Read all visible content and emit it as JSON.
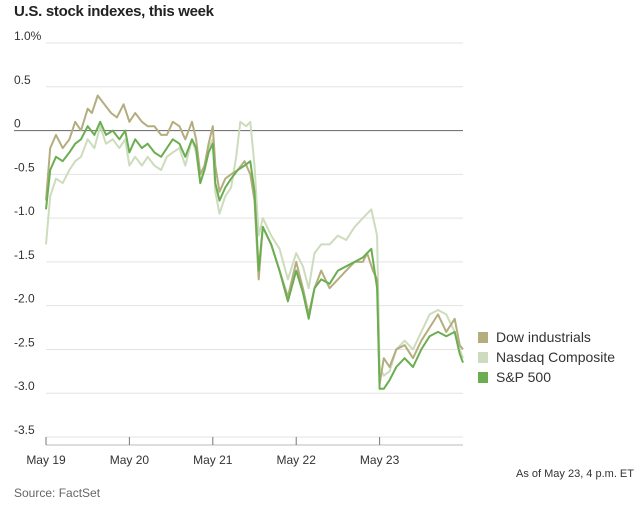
{
  "chart_data": {
    "type": "line",
    "title": "U.S. stock indexes, this week",
    "note": "As of May 23, 4 p.m. ET",
    "source": "Source: FactSet",
    "y_ticks": [
      "1.0%",
      "0.5",
      "0",
      "-0.5",
      "-1.0",
      "-1.5",
      "-2.0",
      "-2.5",
      "-3.0",
      "-3.5"
    ],
    "y_tick_values": [
      1.0,
      0.5,
      0,
      -0.5,
      -1.0,
      -1.5,
      -2.0,
      -2.5,
      -3.0,
      -3.5
    ],
    "x_ticks": [
      "May 19",
      "May 20",
      "May 21",
      "May 22",
      "May 23"
    ],
    "x_tick_values": [
      0,
      1,
      2,
      3,
      4
    ],
    "ylim": [
      -3.5,
      1.0
    ],
    "xlim": [
      0,
      5
    ],
    "grid": true,
    "legend_position": "right",
    "series": [
      {
        "name": "Dow industrials",
        "color": "#b4ad7e",
        "points": [
          [
            0.0,
            -0.8
          ],
          [
            0.05,
            -0.2
          ],
          [
            0.12,
            -0.05
          ],
          [
            0.2,
            -0.2
          ],
          [
            0.28,
            -0.1
          ],
          [
            0.35,
            0.1
          ],
          [
            0.42,
            0.0
          ],
          [
            0.5,
            0.25
          ],
          [
            0.55,
            0.2
          ],
          [
            0.62,
            0.4
          ],
          [
            0.7,
            0.3
          ],
          [
            0.78,
            0.2
          ],
          [
            0.85,
            0.15
          ],
          [
            0.93,
            0.3
          ],
          [
            1.0,
            0.1
          ],
          [
            1.07,
            0.2
          ],
          [
            1.15,
            0.1
          ],
          [
            1.22,
            0.05
          ],
          [
            1.3,
            0.05
          ],
          [
            1.38,
            -0.05
          ],
          [
            1.45,
            -0.05
          ],
          [
            1.52,
            0.1
          ],
          [
            1.6,
            0.05
          ],
          [
            1.67,
            -0.1
          ],
          [
            1.75,
            0.1
          ],
          [
            1.8,
            -0.1
          ],
          [
            1.85,
            -0.5
          ],
          [
            1.9,
            -0.4
          ],
          [
            1.95,
            -0.15
          ],
          [
            2.0,
            0.05
          ],
          [
            2.03,
            -0.4
          ],
          [
            2.08,
            -0.7
          ],
          [
            2.15,
            -0.55
          ],
          [
            2.22,
            -0.5
          ],
          [
            2.3,
            -0.45
          ],
          [
            2.38,
            -0.35
          ],
          [
            2.45,
            -0.5
          ],
          [
            2.5,
            -0.8
          ],
          [
            2.55,
            -1.7
          ],
          [
            2.6,
            -1.1
          ],
          [
            2.7,
            -1.3
          ],
          [
            2.8,
            -1.6
          ],
          [
            2.9,
            -1.9
          ],
          [
            3.0,
            -1.5
          ],
          [
            3.08,
            -1.8
          ],
          [
            3.15,
            -2.1
          ],
          [
            3.22,
            -1.8
          ],
          [
            3.3,
            -1.6
          ],
          [
            3.4,
            -1.8
          ],
          [
            3.5,
            -1.7
          ],
          [
            3.6,
            -1.6
          ],
          [
            3.7,
            -1.5
          ],
          [
            3.8,
            -1.5
          ],
          [
            3.85,
            -1.4
          ],
          [
            3.92,
            -1.6
          ],
          [
            3.97,
            -1.7
          ],
          [
            4.0,
            -2.9
          ],
          [
            4.05,
            -2.6
          ],
          [
            4.12,
            -2.7
          ],
          [
            4.2,
            -2.5
          ],
          [
            4.3,
            -2.45
          ],
          [
            4.4,
            -2.6
          ],
          [
            4.5,
            -2.4
          ],
          [
            4.6,
            -2.25
          ],
          [
            4.7,
            -2.1
          ],
          [
            4.8,
            -2.3
          ],
          [
            4.9,
            -2.15
          ],
          [
            4.96,
            -2.45
          ],
          [
            5.0,
            -2.5
          ]
        ]
      },
      {
        "name": "Nasdaq Composite",
        "color": "#ccdcbc",
        "points": [
          [
            0.0,
            -1.3
          ],
          [
            0.05,
            -0.75
          ],
          [
            0.12,
            -0.55
          ],
          [
            0.2,
            -0.6
          ],
          [
            0.28,
            -0.45
          ],
          [
            0.35,
            -0.35
          ],
          [
            0.42,
            -0.3
          ],
          [
            0.5,
            -0.1
          ],
          [
            0.58,
            -0.2
          ],
          [
            0.65,
            0.05
          ],
          [
            0.72,
            -0.15
          ],
          [
            0.8,
            -0.1
          ],
          [
            0.88,
            -0.2
          ],
          [
            0.95,
            -0.1
          ],
          [
            1.0,
            -0.4
          ],
          [
            1.07,
            -0.3
          ],
          [
            1.15,
            -0.4
          ],
          [
            1.22,
            -0.3
          ],
          [
            1.3,
            -0.4
          ],
          [
            1.38,
            -0.45
          ],
          [
            1.45,
            -0.3
          ],
          [
            1.52,
            -0.25
          ],
          [
            1.6,
            -0.2
          ],
          [
            1.67,
            -0.4
          ],
          [
            1.75,
            -0.1
          ],
          [
            1.8,
            -0.25
          ],
          [
            1.85,
            -0.6
          ],
          [
            1.9,
            -0.4
          ],
          [
            1.95,
            -0.2
          ],
          [
            2.0,
            -0.1
          ],
          [
            2.03,
            -0.7
          ],
          [
            2.08,
            -0.95
          ],
          [
            2.15,
            -0.75
          ],
          [
            2.22,
            -0.65
          ],
          [
            2.28,
            -0.3
          ],
          [
            2.33,
            0.1
          ],
          [
            2.4,
            0.05
          ],
          [
            2.45,
            0.1
          ],
          [
            2.5,
            -0.4
          ],
          [
            2.55,
            -1.2
          ],
          [
            2.6,
            -1.0
          ],
          [
            2.7,
            -1.2
          ],
          [
            2.8,
            -1.35
          ],
          [
            2.9,
            -1.7
          ],
          [
            3.0,
            -1.4
          ],
          [
            3.08,
            -1.55
          ],
          [
            3.15,
            -1.8
          ],
          [
            3.22,
            -1.4
          ],
          [
            3.3,
            -1.3
          ],
          [
            3.4,
            -1.3
          ],
          [
            3.5,
            -1.2
          ],
          [
            3.6,
            -1.25
          ],
          [
            3.7,
            -1.1
          ],
          [
            3.8,
            -1.0
          ],
          [
            3.9,
            -0.9
          ],
          [
            3.97,
            -1.2
          ],
          [
            4.0,
            -2.7
          ],
          [
            4.05,
            -2.8
          ],
          [
            4.12,
            -2.75
          ],
          [
            4.2,
            -2.5
          ],
          [
            4.3,
            -2.4
          ],
          [
            4.4,
            -2.5
          ],
          [
            4.5,
            -2.3
          ],
          [
            4.6,
            -2.1
          ],
          [
            4.7,
            -2.05
          ],
          [
            4.8,
            -2.1
          ],
          [
            4.9,
            -2.3
          ],
          [
            4.96,
            -2.5
          ],
          [
            5.0,
            -2.6
          ]
        ]
      },
      {
        "name": "S&P 500",
        "color": "#6aae51",
        "points": [
          [
            0.0,
            -0.9
          ],
          [
            0.05,
            -0.45
          ],
          [
            0.12,
            -0.3
          ],
          [
            0.2,
            -0.35
          ],
          [
            0.28,
            -0.25
          ],
          [
            0.35,
            -0.15
          ],
          [
            0.42,
            -0.1
          ],
          [
            0.5,
            0.05
          ],
          [
            0.58,
            -0.05
          ],
          [
            0.65,
            0.1
          ],
          [
            0.72,
            -0.05
          ],
          [
            0.8,
            0.0
          ],
          [
            0.88,
            -0.1
          ],
          [
            0.95,
            0.0
          ],
          [
            1.0,
            -0.25
          ],
          [
            1.07,
            -0.1
          ],
          [
            1.15,
            -0.2
          ],
          [
            1.22,
            -0.15
          ],
          [
            1.3,
            -0.25
          ],
          [
            1.38,
            -0.3
          ],
          [
            1.45,
            -0.2
          ],
          [
            1.52,
            -0.1
          ],
          [
            1.6,
            -0.15
          ],
          [
            1.67,
            -0.3
          ],
          [
            1.75,
            -0.1
          ],
          [
            1.8,
            -0.2
          ],
          [
            1.85,
            -0.6
          ],
          [
            1.9,
            -0.45
          ],
          [
            1.95,
            -0.25
          ],
          [
            2.0,
            -0.15
          ],
          [
            2.03,
            -0.6
          ],
          [
            2.08,
            -0.8
          ],
          [
            2.15,
            -0.65
          ],
          [
            2.22,
            -0.55
          ],
          [
            2.3,
            -0.45
          ],
          [
            2.38,
            -0.4
          ],
          [
            2.45,
            -0.35
          ],
          [
            2.5,
            -0.7
          ],
          [
            2.55,
            -1.6
          ],
          [
            2.6,
            -1.1
          ],
          [
            2.7,
            -1.3
          ],
          [
            2.8,
            -1.6
          ],
          [
            2.9,
            -1.95
          ],
          [
            3.0,
            -1.6
          ],
          [
            3.08,
            -1.85
          ],
          [
            3.15,
            -2.15
          ],
          [
            3.22,
            -1.8
          ],
          [
            3.3,
            -1.7
          ],
          [
            3.4,
            -1.75
          ],
          [
            3.5,
            -1.6
          ],
          [
            3.6,
            -1.55
          ],
          [
            3.7,
            -1.5
          ],
          [
            3.8,
            -1.45
          ],
          [
            3.9,
            -1.35
          ],
          [
            3.97,
            -1.8
          ],
          [
            4.0,
            -2.95
          ],
          [
            4.05,
            -2.95
          ],
          [
            4.12,
            -2.85
          ],
          [
            4.2,
            -2.7
          ],
          [
            4.3,
            -2.6
          ],
          [
            4.4,
            -2.7
          ],
          [
            4.5,
            -2.5
          ],
          [
            4.6,
            -2.35
          ],
          [
            4.7,
            -2.3
          ],
          [
            4.8,
            -2.35
          ],
          [
            4.9,
            -2.3
          ],
          [
            4.96,
            -2.55
          ],
          [
            5.0,
            -2.65
          ]
        ]
      }
    ]
  }
}
